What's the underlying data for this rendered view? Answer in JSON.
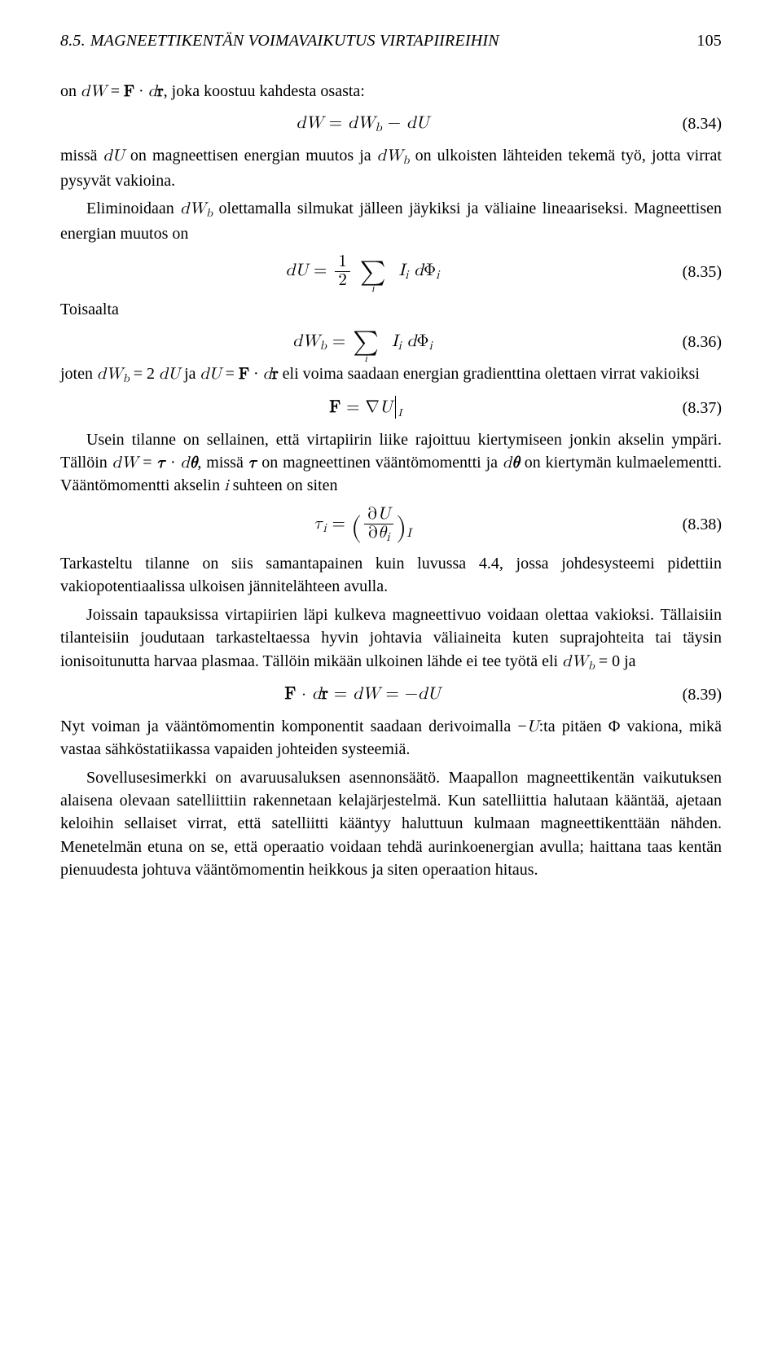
{
  "header": {
    "section_number": "8.5.",
    "section_title": "MAGNEETTIKENTÄN VOIMAVAIKUTUS VIRTAPIIREIHIN",
    "page_number": "105"
  },
  "p1_a": "on ",
  "p1_math": "dW = F · dr",
  "p1_b": ", joka koostuu kahdesta osasta:",
  "eq34": {
    "formula": "dW = dW_b − dU",
    "num": "(8.34)"
  },
  "p2": "missä dU on magneettisen energian muutos ja dW_b on ulkoisten lähteiden tekemä työ, jotta virrat pysyvät vakioina.",
  "p3": "Eliminoidaan dW_b olettamalla silmukat jälleen jäykiksi ja väliaine lineaariseksi. Magneettisen energian muutos on",
  "eq35": {
    "num": "(8.35)"
  },
  "p4": "Toisaalta",
  "eq36": {
    "num": "(8.36)"
  },
  "p5": "joten dW_b = 2 dU ja dU = F · dr eli voima saadaan energian gradienttina olettaen virrat vakioiksi",
  "eq37": {
    "num": "(8.37)"
  },
  "p6": "Usein tilanne on sellainen, että virtapiirin liike rajoittuu kiertymiseen jonkin akselin ympäri. Tällöin dW = τ · dθ, missä τ on magneettinen vääntömomentti ja dθ on kiertymän kulmaelementti. Vääntömomentti akselin i suhteen on siten",
  "eq38": {
    "num": "(8.38)"
  },
  "p7": "Tarkasteltu tilanne on siis samantapainen kuin luvussa 4.4, jossa johdesysteemi pidettiin vakiopotentiaalissa ulkoisen jännitelähteen avulla.",
  "p8": "Joissain tapauksissa virtapiirien läpi kulkeva magneettivuo voidaan olettaa vakioksi. Tällaisiin tilanteisiin joudutaan tarkasteltaessa hyvin johtavia väliaineita kuten suprajohteita tai täysin ionisoitunutta harvaa plasmaa. Tällöin mikään ulkoinen lähde ei tee työtä eli dW_b = 0 ja",
  "eq39": {
    "formula": "F · dr = dW = −dU",
    "num": "(8.39)"
  },
  "p9": "Nyt voiman ja vääntömomentin komponentit saadaan derivoimalla −U:ta pitäen Φ vakiona, mikä vastaa sähköstatiikassa vapaiden johteiden systeemiä.",
  "p10": "Sovellusesimerkki on avaruusaluksen asennonsäätö. Maapallon magneettikentän vaikutuksen alaisena olevaan satelliittiin rakennetaan kelajärjestelmä. Kun satelliittia halutaan kääntää, ajetaan keloihin sellaiset virrat, että satelliitti kääntyy haluttuun kulmaan magneettikenttään nähden. Menetelmän etuna on se, että operaatio voidaan tehdä aurinkoenergian avulla; haittana taas kentän pienuudesta johtuva vääntömomentin heikkous ja siten operaation hitaus."
}
